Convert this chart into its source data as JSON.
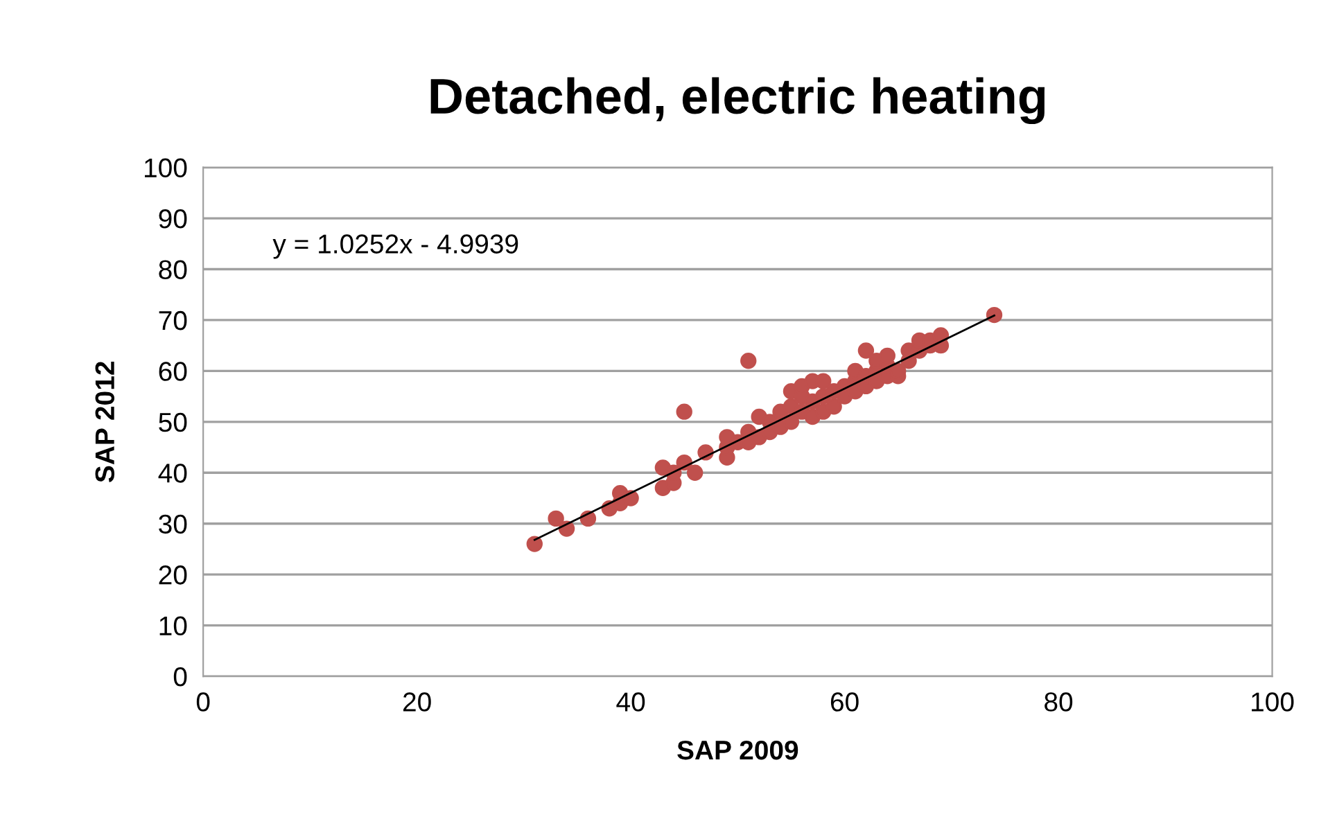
{
  "chart_data": {
    "type": "scatter",
    "title": "Detached, electric heating",
    "xlabel": "SAP 2009",
    "ylabel": "SAP 2012",
    "series": [
      {
        "color": "#c0504d",
        "marker": "circle",
        "x": [
          31,
          33,
          34,
          36,
          38,
          39,
          39,
          40,
          43,
          43,
          44,
          44,
          45,
          45,
          46,
          47,
          49,
          49,
          49,
          50,
          51,
          51,
          51,
          52,
          52,
          53,
          53,
          54,
          54,
          55,
          55,
          55,
          56,
          56,
          56,
          57,
          57,
          57,
          58,
          58,
          58,
          59,
          59,
          60,
          60,
          61,
          61,
          61,
          62,
          62,
          62,
          63,
          63,
          63,
          64,
          64,
          64,
          65,
          65,
          66,
          66,
          67,
          67,
          68,
          68,
          69,
          69,
          74
        ],
        "values": [
          26,
          31,
          29,
          31,
          33,
          36,
          34,
          35,
          41,
          37,
          38,
          40,
          42,
          52,
          40,
          44,
          43,
          45,
          47,
          46,
          62,
          48,
          46,
          51,
          47,
          48,
          50,
          49,
          52,
          50,
          53,
          56,
          55,
          52,
          57,
          51,
          54,
          58,
          52,
          55,
          58,
          53,
          56,
          55,
          57,
          56,
          58,
          60,
          57,
          59,
          64,
          58,
          60,
          62,
          59,
          61,
          63,
          59,
          60,
          62,
          64,
          64,
          66,
          65,
          66,
          65,
          67,
          71
        ]
      },
      {
        "type": "line",
        "color": "#000000",
        "x": [
          31,
          74
        ],
        "values": [
          26.8,
          70.9
        ]
      }
    ],
    "annotations": [
      "y = 1.0252x - 4.9939"
    ],
    "xlim": [
      0,
      100
    ],
    "ylim": [
      0,
      100
    ],
    "xticks": [
      0,
      20,
      40,
      60,
      80,
      100
    ],
    "yticks": [
      0,
      10,
      20,
      30,
      40,
      50,
      60,
      70,
      80,
      90,
      100
    ],
    "grid": "y"
  }
}
